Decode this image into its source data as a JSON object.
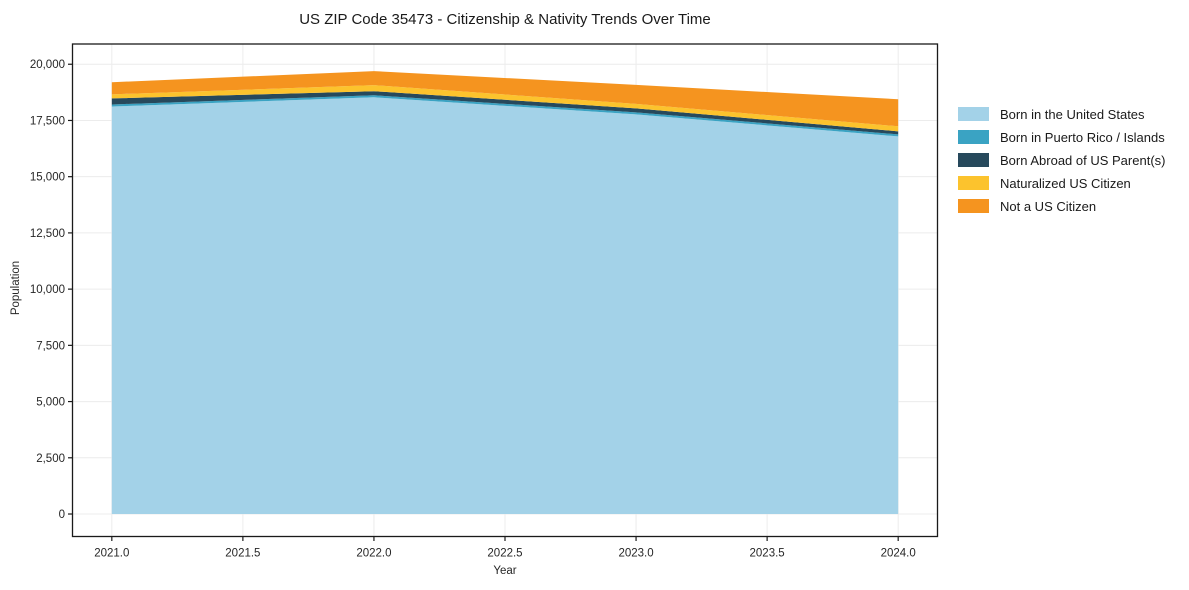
{
  "page": {
    "background": "#ffffff"
  },
  "chart_data": {
    "type": "area",
    "stacked": true,
    "title": "US ZIP Code 35473 - Citizenship & Nativity Trends Over Time",
    "xlabel": "Year",
    "ylabel": "Population",
    "x": [
      2021,
      2022,
      2023,
      2024
    ],
    "series": [
      {
        "name": "Born in the United States",
        "color": "#a3d2e8",
        "values": [
          18120,
          18530,
          17770,
          16790
        ]
      },
      {
        "name": "Born in Puerto Rico / Islands",
        "color": "#3aa3c3",
        "values": [
          90,
          90,
          90,
          90
        ]
      },
      {
        "name": "Born Abroad of US Parent(s)",
        "color": "#27495c",
        "values": [
          270,
          180,
          180,
          135
        ]
      },
      {
        "name": "Naturalized US Citizen",
        "color": "#fcc32d",
        "values": [
          180,
          270,
          200,
          225
        ]
      },
      {
        "name": "Not a US Citizen",
        "color": "#f5941f",
        "values": [
          540,
          625,
          840,
          1205
        ]
      }
    ],
    "totals": [
      19200,
      19695,
      19080,
      18445
    ],
    "xticks": [
      2021.0,
      2021.5,
      2022.0,
      2022.5,
      2023.0,
      2023.5,
      2024.0
    ],
    "xtick_labels": [
      "2021.0",
      "2021.5",
      "2022.0",
      "2022.5",
      "2023.0",
      "2023.5",
      "2024.0"
    ],
    "yticks": [
      0,
      2500,
      5000,
      7500,
      10000,
      12500,
      15000,
      17500,
      20000
    ],
    "ytick_labels": [
      "0",
      "2,500",
      "5,000",
      "7,500",
      "10,000",
      "12,500",
      "15,000",
      "17,500",
      "20,000"
    ],
    "xlim": [
      2020.85,
      2024.15
    ],
    "ylim": [
      -1000,
      20900
    ],
    "grid": true,
    "grid_color": "#ececec",
    "spine_color": "#1a1a1a",
    "text_color": "#262626",
    "legend_position": "outside-right"
  }
}
